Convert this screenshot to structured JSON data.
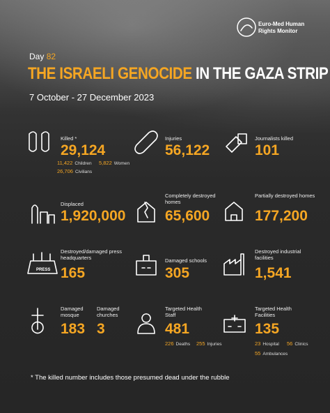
{
  "header": {
    "logo": [
      "Euro-Med Human",
      "Rights Monitor"
    ],
    "day_label": "Day",
    "day_number": "82",
    "title_highlight": "THE ISRAELI GENOCIDE",
    "title_rest": "IN THE GAZA STRIP",
    "date_range": "7 October - 27 December 2023"
  },
  "items": [
    {
      "label": "Killed *",
      "value": "29,124",
      "details": [
        {
          "value": "11,422",
          "label": "Children"
        },
        {
          "value": "5,822",
          "label": "Women"
        },
        {
          "value": "26,706",
          "label": "Civilians"
        }
      ]
    },
    {
      "label": "Injuries",
      "value": "56,122"
    },
    {
      "label": "Journalists killed",
      "value": "101"
    },
    {
      "label": "Displaced",
      "value": "1,920,000"
    },
    {
      "label": "Completely destroyed homes",
      "value": "65,600"
    },
    {
      "label": "Partially destroyed homes",
      "value": "177,200"
    },
    {
      "label": "Destroyed/damaged press headquarters",
      "value": "165"
    },
    {
      "label": "Damaged schools",
      "value": "305"
    },
    {
      "label": "Destroyed industrial facilities",
      "value": "1,541"
    },
    {
      "label": "Damaged mosque",
      "value": "183"
    },
    {
      "label": "Damaged churches",
      "value": "3"
    },
    {
      "label": "Targeted Health Staff",
      "value": "481",
      "details": [
        {
          "value": "226",
          "label": "Deaths"
        },
        {
          "value": "255",
          "label": "Injuries"
        }
      ]
    },
    {
      "label": "Targeted Health Facilities",
      "value": "135",
      "details": [
        {
          "value": "23",
          "label": "Hospital"
        },
        {
          "value": "56",
          "label": "Clinics"
        },
        {
          "value": "55",
          "label": "Ambulances"
        }
      ]
    }
  ],
  "footnote": "* The killed number includes those presumed dead under the rubble"
}
